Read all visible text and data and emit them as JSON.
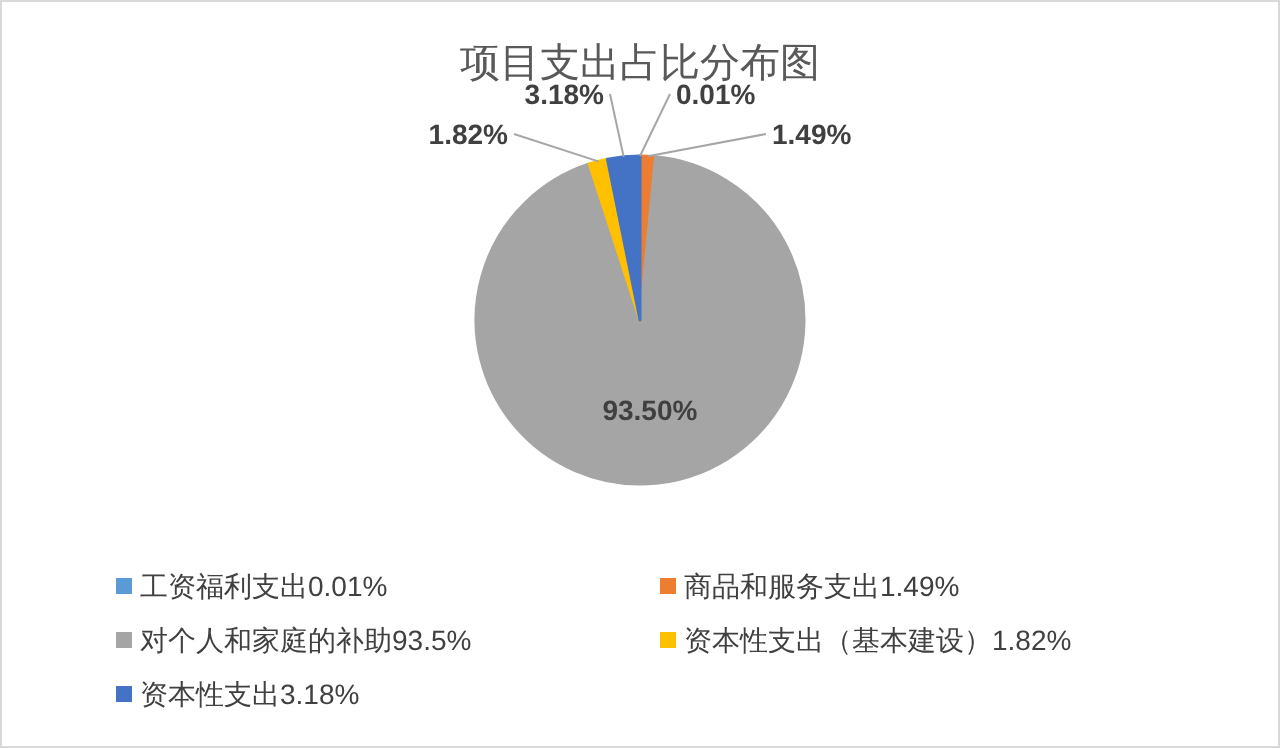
{
  "chart_data": {
    "type": "pie",
    "title": "项目支出占比分布图",
    "categories": [
      "工资福利支出0.01%",
      "商品和服务支出1.49%",
      "对个人和家庭的补助93.5%",
      "资本性支出（基本建设）1.82%",
      "资本性支出3.18%"
    ],
    "values": [
      0.01,
      1.49,
      93.5,
      1.82,
      3.18
    ],
    "colors": [
      "#5b9bd5",
      "#ed7d31",
      "#a5a5a5",
      "#ffc000",
      "#4472c4"
    ],
    "value_labels": [
      "0.01%",
      "1.49%",
      "93.50%",
      "1.82%",
      "3.18%"
    ],
    "legend": "bottom"
  }
}
